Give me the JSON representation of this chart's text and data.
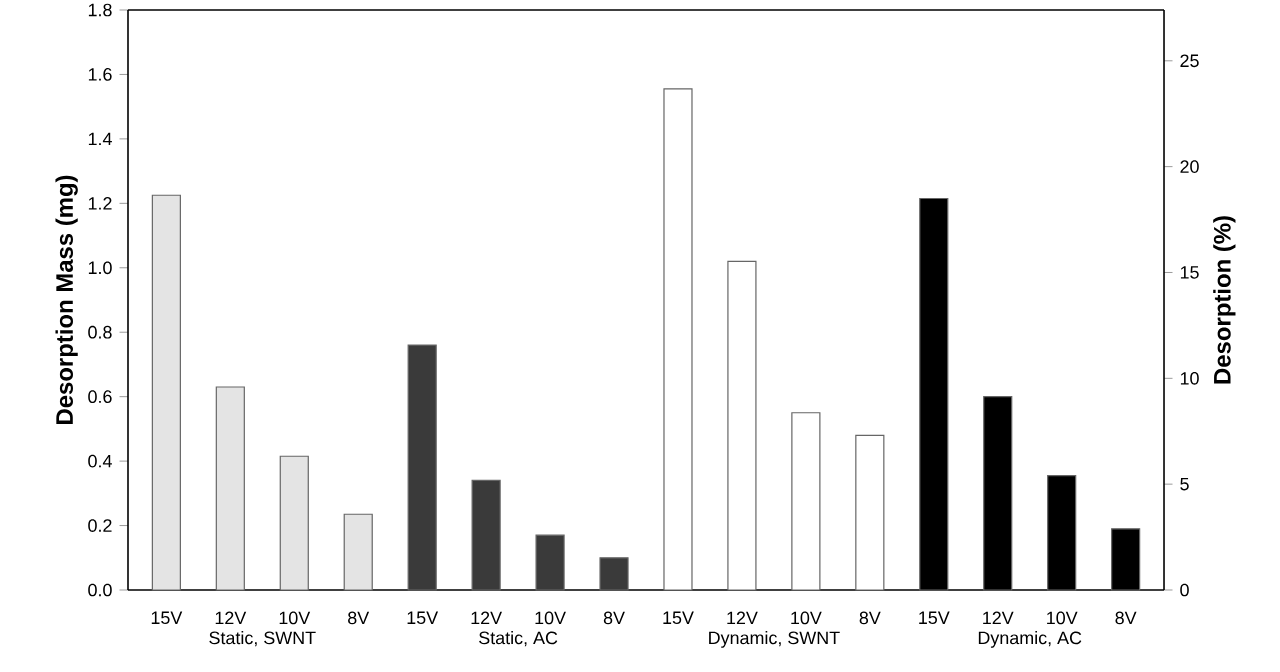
{
  "chart_data": {
    "type": "bar",
    "ylabel": "Desorption Mass (mg)",
    "y2label": "Desorption (%)",
    "categories": [
      "15V",
      "12V",
      "10V",
      "8V",
      "15V",
      "12V",
      "10V",
      "8V",
      "15V",
      "12V",
      "10V",
      "8V",
      "15V",
      "12V",
      "10V",
      "8V"
    ],
    "values": [
      1.225,
      0.63,
      0.415,
      0.235,
      0.76,
      0.34,
      0.17,
      0.1,
      1.555,
      1.02,
      0.55,
      0.48,
      1.215,
      0.6,
      0.355,
      0.19
    ],
    "colors": [
      "#e4e4e4",
      "#e4e4e4",
      "#e4e4e4",
      "#e4e4e4",
      "#3a3a3a",
      "#3a3a3a",
      "#3a3a3a",
      "#3a3a3a",
      "#ffffff",
      "#ffffff",
      "#ffffff",
      "#ffffff",
      "#000000",
      "#000000",
      "#000000",
      "#000000"
    ],
    "ylim": [
      0,
      1.8
    ],
    "yticks": [
      {
        "value": 0,
        "label": "0.0"
      },
      0.2,
      0.4,
      0.6,
      0.8,
      {
        "value": 1,
        "label": "1.0"
      },
      1.2,
      1.4,
      1.6,
      1.8
    ],
    "y2lim": [
      0,
      27.4
    ],
    "y2ticks": [
      0,
      5,
      10,
      15,
      20,
      25
    ],
    "annotations": [
      "Static, SWNT",
      "Static, AC",
      "Dynamic, SWNT",
      "Dynamic, AC"
    ]
  }
}
